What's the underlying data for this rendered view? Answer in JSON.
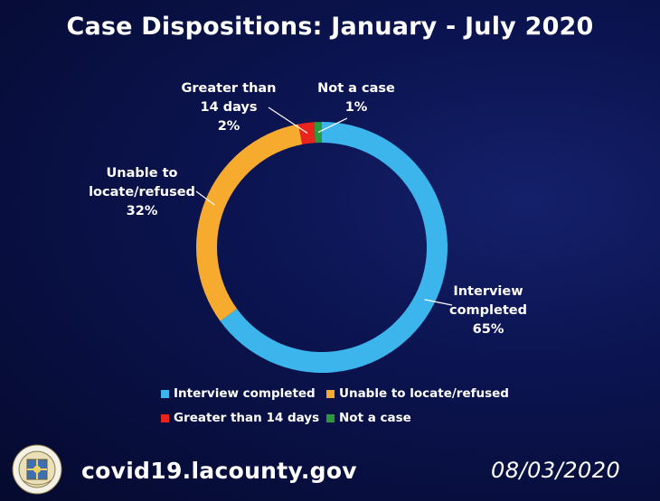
{
  "chart_data": {
    "type": "pie",
    "title": "Case Dispositions: January - July 2020",
    "donut": true,
    "legend_position": "bottom",
    "slices": [
      {
        "name": "Interview completed",
        "value": 65,
        "label_lines": [
          "Interview",
          "completed"
        ],
        "percent_text": "65%",
        "color": "#3cb4ec"
      },
      {
        "name": "Unable to locate/refused",
        "value": 32,
        "label_lines": [
          "Unable to",
          "locate/refused"
        ],
        "percent_text": "32%",
        "color": "#f7ab2e"
      },
      {
        "name": "Greater than 14 days",
        "value": 2,
        "label_lines": [
          "Greater than",
          "14 days"
        ],
        "percent_text": "2%",
        "color": "#e8241c"
      },
      {
        "name": "Not a case",
        "value": 1,
        "label_lines": [
          "Not a case"
        ],
        "percent_text": "1%",
        "color": "#2a9a3c"
      }
    ]
  },
  "footer": {
    "url": "covid19.lacounty.gov",
    "date": "08/03/2020"
  },
  "seal": {
    "icon": "county-seal-icon"
  }
}
